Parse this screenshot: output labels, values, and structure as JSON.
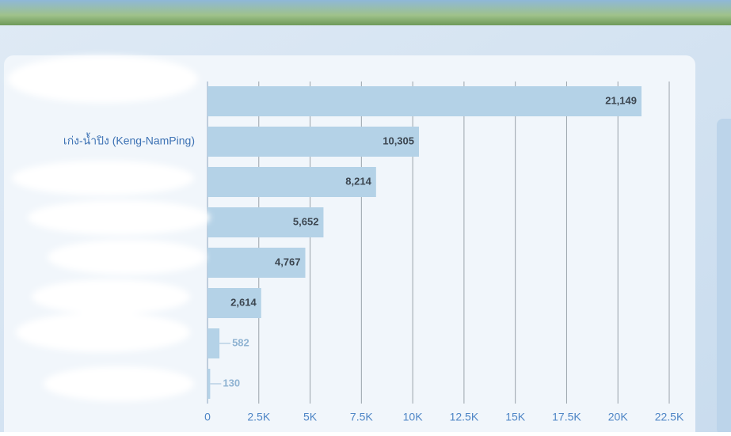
{
  "chart_data": {
    "type": "bar",
    "orientation": "horizontal",
    "categories": [
      null,
      "เก่ง-น้ำปิง (Keng-NamPing)",
      null,
      null,
      null,
      null,
      null,
      null
    ],
    "values": [
      21149,
      10305,
      8214,
      5652,
      4767,
      2614,
      582,
      130
    ],
    "value_labels": [
      "21,149",
      "10,305",
      "8,214",
      "5,652",
      "4,767",
      "2,614",
      "582",
      "130"
    ],
    "color": "#b4d2e7",
    "xlim": [
      0,
      22500
    ],
    "xticks": [
      0,
      {
        "value": 2500,
        "label": "2.5K"
      },
      {
        "value": 5000,
        "label": "5K"
      },
      {
        "value": 7500,
        "label": "7.5K"
      },
      {
        "value": 10000,
        "label": "10K"
      },
      {
        "value": 12500,
        "label": "12.5K"
      },
      {
        "value": 15000,
        "label": "15K"
      },
      {
        "value": 17500,
        "label": "17.5K"
      },
      {
        "value": 20000,
        "label": "20K"
      },
      {
        "value": 22500,
        "label": "22.5K"
      }
    ],
    "grid": true
  }
}
